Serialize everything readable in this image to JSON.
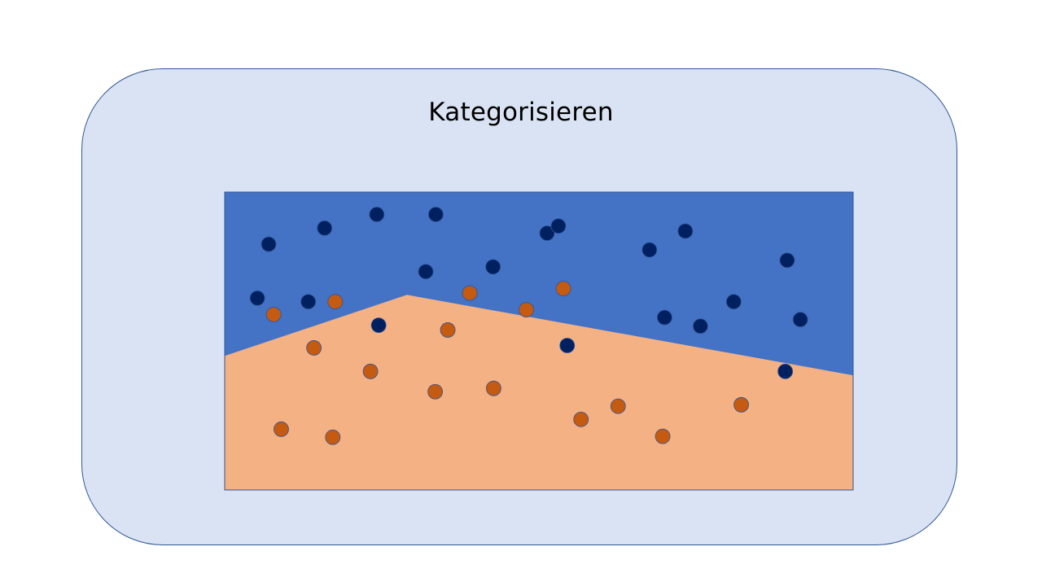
{
  "slide": {
    "title": "Kategorisieren"
  },
  "colors": {
    "card_fill": "#dae3f3",
    "card_border": "#2f5597",
    "region_blue": "#4472c4",
    "region_orange": "#f4b183",
    "point_blue": "#002060",
    "point_orange": "#c55a11"
  },
  "legend": "none",
  "boundary": [
    [
      0,
      0.45
    ],
    [
      0.29,
      0.655
    ],
    [
      1,
      0.385
    ]
  ],
  "points": [
    {
      "cls": "blue",
      "x": 0.07,
      "y": 0.825
    },
    {
      "cls": "blue",
      "x": 0.159,
      "y": 0.879
    },
    {
      "cls": "blue",
      "x": 0.242,
      "y": 0.925
    },
    {
      "cls": "blue",
      "x": 0.336,
      "y": 0.925
    },
    {
      "cls": "blue",
      "x": 0.513,
      "y": 0.862
    },
    {
      "cls": "blue",
      "x": 0.531,
      "y": 0.886
    },
    {
      "cls": "blue",
      "x": 0.676,
      "y": 0.806
    },
    {
      "cls": "blue",
      "x": 0.733,
      "y": 0.869
    },
    {
      "cls": "blue",
      "x": 0.895,
      "y": 0.771
    },
    {
      "cls": "blue",
      "x": 0.32,
      "y": 0.733
    },
    {
      "cls": "blue",
      "x": 0.427,
      "y": 0.749
    },
    {
      "cls": "blue",
      "x": 0.052,
      "y": 0.644
    },
    {
      "cls": "blue",
      "x": 0.133,
      "y": 0.632
    },
    {
      "cls": "blue",
      "x": 0.245,
      "y": 0.553
    },
    {
      "cls": "blue",
      "x": 0.7,
      "y": 0.579
    },
    {
      "cls": "blue",
      "x": 0.757,
      "y": 0.55
    },
    {
      "cls": "blue",
      "x": 0.81,
      "y": 0.632
    },
    {
      "cls": "blue",
      "x": 0.916,
      "y": 0.572
    },
    {
      "cls": "blue",
      "x": 0.545,
      "y": 0.485
    },
    {
      "cls": "blue",
      "x": 0.892,
      "y": 0.398
    },
    {
      "cls": "orange",
      "x": 0.078,
      "y": 0.589
    },
    {
      "cls": "orange",
      "x": 0.176,
      "y": 0.632
    },
    {
      "cls": "orange",
      "x": 0.39,
      "y": 0.661
    },
    {
      "cls": "orange",
      "x": 0.48,
      "y": 0.605
    },
    {
      "cls": "orange",
      "x": 0.539,
      "y": 0.676
    },
    {
      "cls": "orange",
      "x": 0.355,
      "y": 0.537
    },
    {
      "cls": "orange",
      "x": 0.142,
      "y": 0.477
    },
    {
      "cls": "orange",
      "x": 0.232,
      "y": 0.398
    },
    {
      "cls": "orange",
      "x": 0.335,
      "y": 0.33
    },
    {
      "cls": "orange",
      "x": 0.428,
      "y": 0.341
    },
    {
      "cls": "orange",
      "x": 0.09,
      "y": 0.204
    },
    {
      "cls": "orange",
      "x": 0.172,
      "y": 0.177
    },
    {
      "cls": "orange",
      "x": 0.567,
      "y": 0.237
    },
    {
      "cls": "orange",
      "x": 0.626,
      "y": 0.281
    },
    {
      "cls": "orange",
      "x": 0.697,
      "y": 0.18
    },
    {
      "cls": "orange",
      "x": 0.822,
      "y": 0.286
    }
  ]
}
